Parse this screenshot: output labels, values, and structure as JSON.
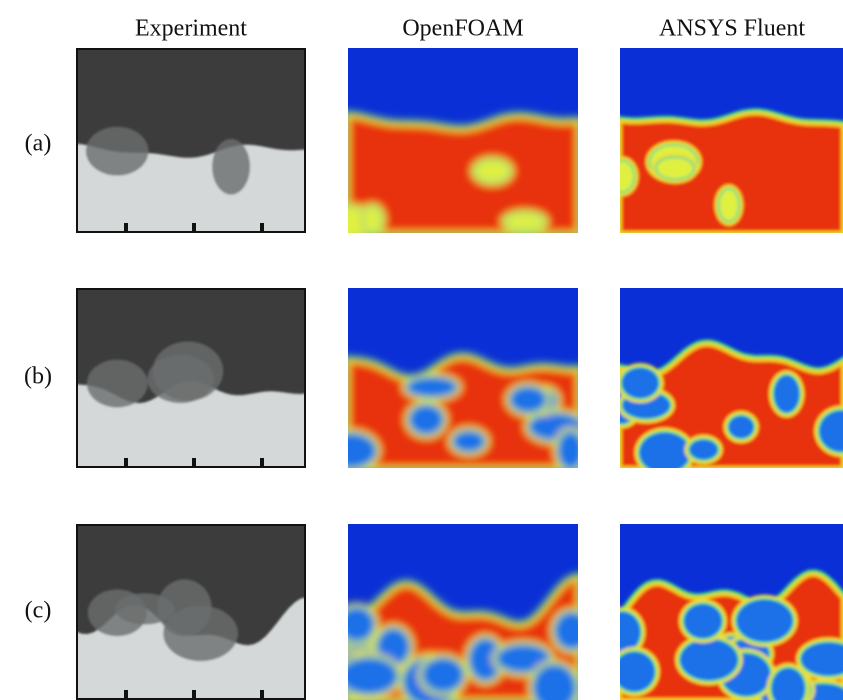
{
  "columns": [
    "Experiment",
    "OpenFOAM",
    "ANSYS Fluent"
  ],
  "rows": [
    "(a)",
    "(b)",
    "(c)"
  ]
}
